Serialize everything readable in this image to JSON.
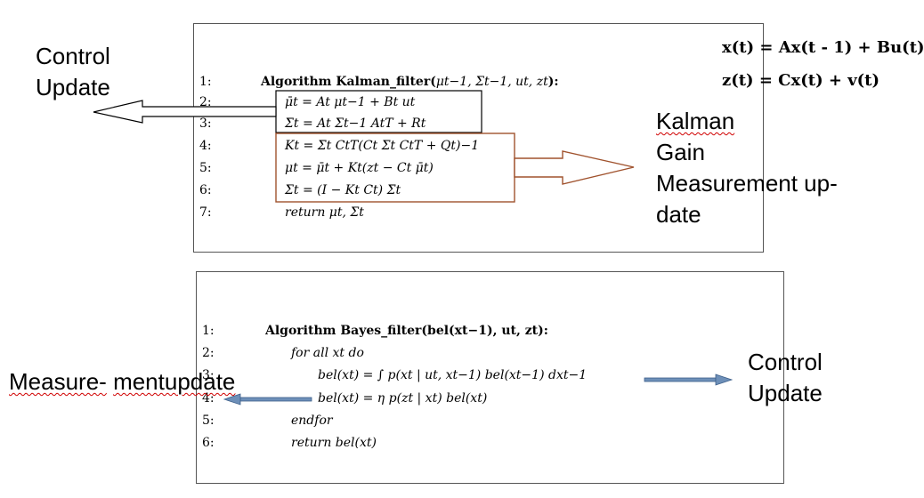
{
  "kalman_box": {
    "line_numbers": [
      "1:",
      "2:",
      "3:",
      "4:",
      "5:",
      "6:",
      "7:"
    ],
    "header": {
      "keyword": "Algorithm Kalman_filter(",
      "args": "μ",
      "args_full": "μt−1, Σt−1, ut, zt",
      "suffix": "):"
    },
    "lines": [
      "μ̄t = At μt−1 + Bt ut",
      "Σ̄t = At Σt−1 AtT + Rt",
      "Kt = Σ̄t CtT(Ct Σ̄t CtT + Qt)−1",
      "μt = μ̄t + Kt(zt − Ct μ̄t)",
      "Σt = (I − Kt Ct) Σ̄t",
      "return μt, Σt"
    ],
    "equations": [
      "x(t) = Ax(t - 1) + Bu(t)",
      "z(t) = Cx(t) + v(t)"
    ]
  },
  "bayes_box": {
    "line_numbers": [
      "1:",
      "2:",
      "3:",
      "4:",
      "5:",
      "6:"
    ],
    "header": "Algorithm Bayes_filter(bel(xt−1), ut, zt):",
    "lines": [
      "for all xt do",
      "bel(xt) = ∫ p(xt | ut, xt−1) bel(xt−1) dxt−1",
      "bel(xt) = η p(zt | xt) bel(xt)",
      "endfor",
      "return bel(xt)"
    ]
  },
  "labels": {
    "control_update_top": [
      "Control",
      "Update"
    ],
    "kalman_gain": [
      "Kalman",
      "Gain",
      "Measurement up-",
      "date"
    ],
    "measurement_update_bottom": [
      "Measure-",
      "mentupdate"
    ],
    "control_update_bottom": [
      "Control",
      "Update"
    ]
  },
  "colors": {
    "highlight_box_black": "#000000",
    "highlight_box_brown": "#a0522d",
    "arrow_blue": "#6d8fb8",
    "wavy_underline": "#d00000"
  }
}
